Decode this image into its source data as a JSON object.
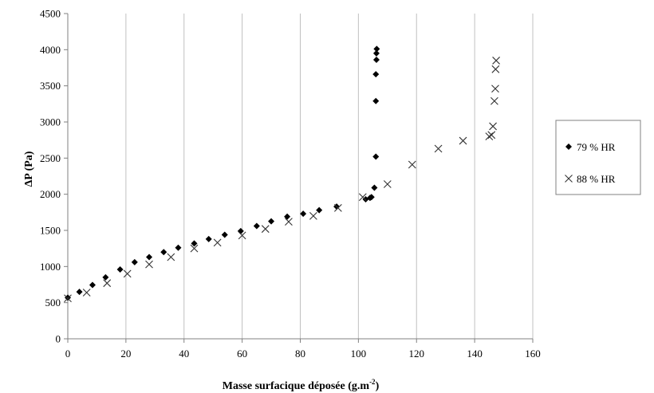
{
  "chart_data": {
    "type": "scatter",
    "title": "",
    "xlabel": "Masse surfacique déposée (g.m",
    "xlabel_sup": "-2",
    "xlabel_end": ")",
    "ylabel": "ΔP (Pa)",
    "xlim": [
      0,
      160
    ],
    "ylim": [
      0,
      4500
    ],
    "x_ticks": [
      0,
      20,
      40,
      60,
      80,
      100,
      120,
      140,
      160
    ],
    "y_ticks": [
      0,
      500,
      1000,
      1500,
      2000,
      2500,
      3000,
      3500,
      4000,
      4500
    ],
    "grid": "vertical",
    "legend_position": "right",
    "series": [
      {
        "name": "79 % HR",
        "marker": "diamond",
        "points": [
          [
            0,
            570
          ],
          [
            4,
            650
          ],
          [
            8.5,
            745
          ],
          [
            13,
            850
          ],
          [
            18,
            960
          ],
          [
            23,
            1060
          ],
          [
            28,
            1130
          ],
          [
            33,
            1200
          ],
          [
            38,
            1260
          ],
          [
            43.5,
            1320
          ],
          [
            48.5,
            1380
          ],
          [
            54,
            1440
          ],
          [
            59.5,
            1490
          ],
          [
            65,
            1560
          ],
          [
            70,
            1625
          ],
          [
            75.5,
            1690
          ],
          [
            81,
            1730
          ],
          [
            86.5,
            1780
          ],
          [
            92.5,
            1830
          ],
          [
            102.5,
            1930
          ],
          [
            104,
            1950
          ],
          [
            104.5,
            1960
          ],
          [
            105.5,
            2090
          ],
          [
            106,
            2520
          ],
          [
            106,
            3290
          ],
          [
            106,
            3660
          ],
          [
            106.2,
            3860
          ],
          [
            106.2,
            3950
          ],
          [
            106.3,
            4010
          ]
        ]
      },
      {
        "name": "88 % HR",
        "marker": "x",
        "points": [
          [
            0,
            560
          ],
          [
            6.5,
            640
          ],
          [
            13.5,
            770
          ],
          [
            20.5,
            900
          ],
          [
            28,
            1030
          ],
          [
            35.5,
            1130
          ],
          [
            43.5,
            1250
          ],
          [
            51.5,
            1330
          ],
          [
            60,
            1430
          ],
          [
            68,
            1520
          ],
          [
            76,
            1620
          ],
          [
            84.5,
            1700
          ],
          [
            93,
            1810
          ],
          [
            101.5,
            1960
          ],
          [
            110,
            2140
          ],
          [
            118.5,
            2410
          ],
          [
            127.5,
            2630
          ],
          [
            136,
            2740
          ],
          [
            145,
            2800
          ],
          [
            145.8,
            2820
          ],
          [
            146.3,
            2940
          ],
          [
            146.8,
            3290
          ],
          [
            147.1,
            3460
          ],
          [
            147.2,
            3730
          ],
          [
            147.4,
            3850
          ]
        ]
      }
    ]
  }
}
